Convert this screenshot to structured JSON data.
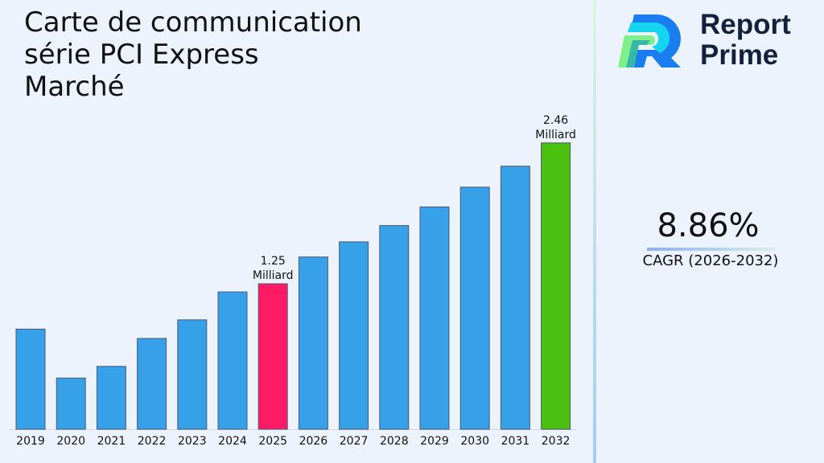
{
  "title": "Carte de communication série PCI Express Marché",
  "brand": {
    "name_line1": "Report",
    "name_line2": "Prime"
  },
  "cagr": {
    "value": "8.86%",
    "label": "CAGR (2026-2032)"
  },
  "colors": {
    "bar": "#36a0e8",
    "highlight_2025": "#fe1a65",
    "highlight_2032": "#4cc00e",
    "background": "#edf3fd"
  },
  "chart_data": {
    "type": "bar",
    "title": "Carte de communication série PCI Express Marché",
    "categories": [
      "2019",
      "2020",
      "2021",
      "2022",
      "2023",
      "2024",
      "2025",
      "2026",
      "2027",
      "2028",
      "2029",
      "2030",
      "2031",
      "2032"
    ],
    "values": [
      0.86,
      0.44,
      0.54,
      0.78,
      0.94,
      1.18,
      1.25,
      1.48,
      1.61,
      1.75,
      1.91,
      2.08,
      2.26,
      2.46
    ],
    "unit": "Milliard",
    "data_labels": [
      {
        "category": "2025",
        "line1": "1.25",
        "line2": "Milliard"
      },
      {
        "category": "2032",
        "line1": "2.46",
        "line2": "Milliard"
      }
    ],
    "ylim": [
      0,
      2.5
    ],
    "grid": false,
    "legend": "none"
  }
}
